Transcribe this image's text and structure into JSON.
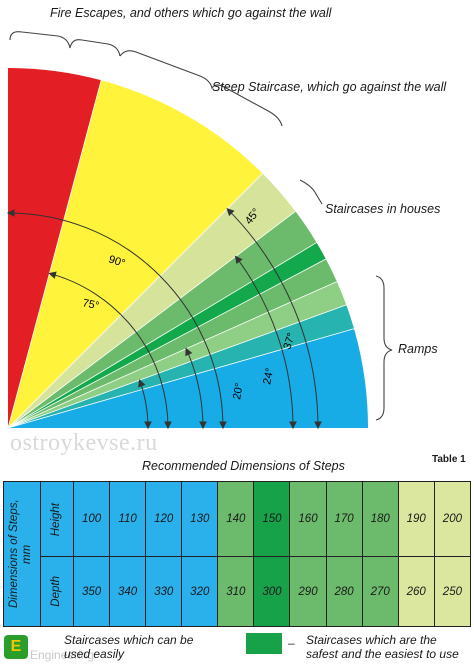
{
  "labels": {
    "fire_escapes": "Fire Escapes, and others which go against the wall",
    "steep_staircase": "Steep Staircase, which go against the wall",
    "staircases_houses": "Staircases in houses",
    "ramps": "Ramps"
  },
  "angles": {
    "a90": "90°",
    "a75": "75°",
    "a45": "45°",
    "a37": "37°",
    "a24": "24°",
    "a20": "20°"
  },
  "watermark": "ostroykevse.ru",
  "table": {
    "title": "Recommended Dimensions of Steps",
    "number": "Table 1",
    "dimensions_label": "Dimensions of Steps, mm",
    "height_label": "Height",
    "depth_label": "Depth",
    "heights": [
      "100",
      "110",
      "120",
      "130",
      "140",
      "150",
      "160",
      "170",
      "180",
      "190",
      "200"
    ],
    "depths": [
      "350",
      "340",
      "330",
      "320",
      "310",
      "300",
      "290",
      "280",
      "270",
      "260",
      "250"
    ]
  },
  "legend": {
    "easy_text": "Staircases which can be used easily",
    "safest_text": "Staircases which are the safest and the easiest to use",
    "dash": "–"
  },
  "logo": {
    "letter": "E",
    "text": "Engineering"
  },
  "colors": {
    "red": "#e31e24",
    "yellow": "#fff33b",
    "light_green": "#d5e49a",
    "mid_green": "#6cbb6c",
    "bright_green": "#13a84b",
    "pale_green": "#8fce85",
    "teal": "#27b3b0",
    "blue": "#17ace5",
    "cell_blue": "#2ab0ea",
    "cell_green": "#6cbb6c",
    "cell_dark_green": "#17a24a",
    "cell_light_green": "#dbe79e"
  }
}
